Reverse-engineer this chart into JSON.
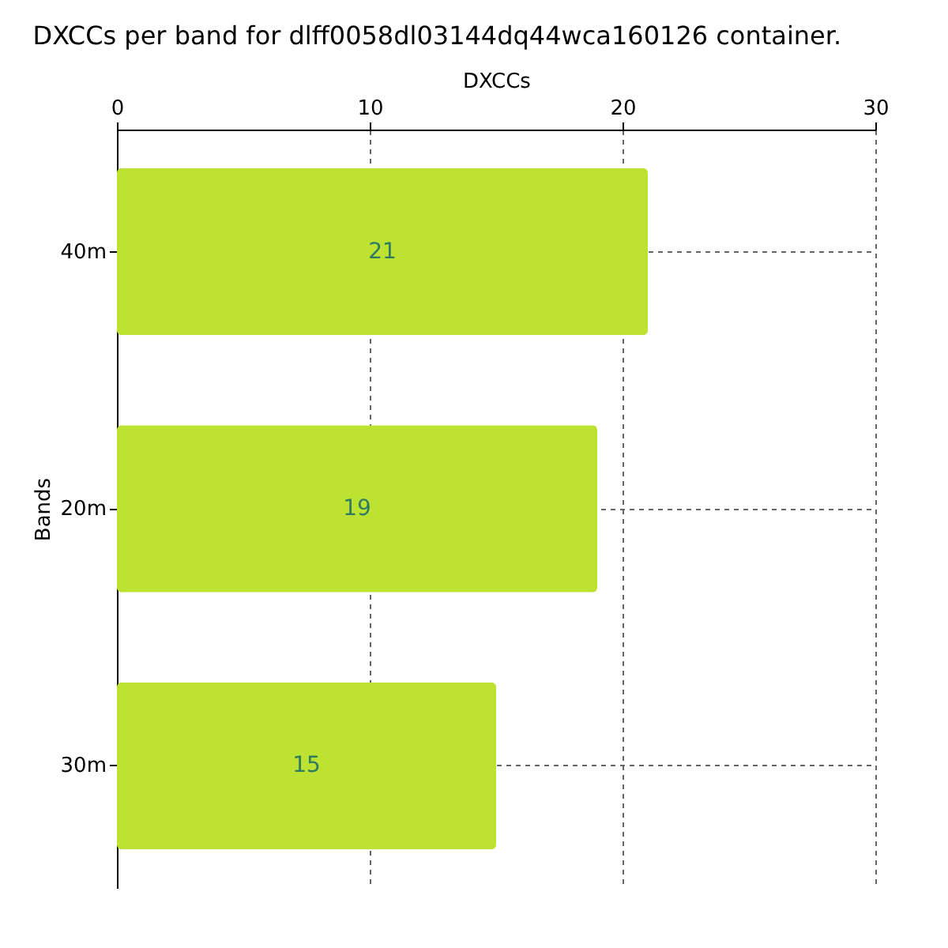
{
  "chart_data": {
    "type": "bar",
    "orientation": "horizontal",
    "title": "DXCCs per band for dlff0058dl03144dq44wca160126 container.",
    "xlabel": "DXCCs",
    "ylabel": "Bands",
    "categories": [
      "40m",
      "20m",
      "30m"
    ],
    "values": [
      21,
      19,
      15
    ],
    "color": "#bde232",
    "xlim": [
      0,
      30
    ],
    "xticks": [
      0,
      10,
      20,
      30
    ],
    "grid": true,
    "data_labels": true
  }
}
